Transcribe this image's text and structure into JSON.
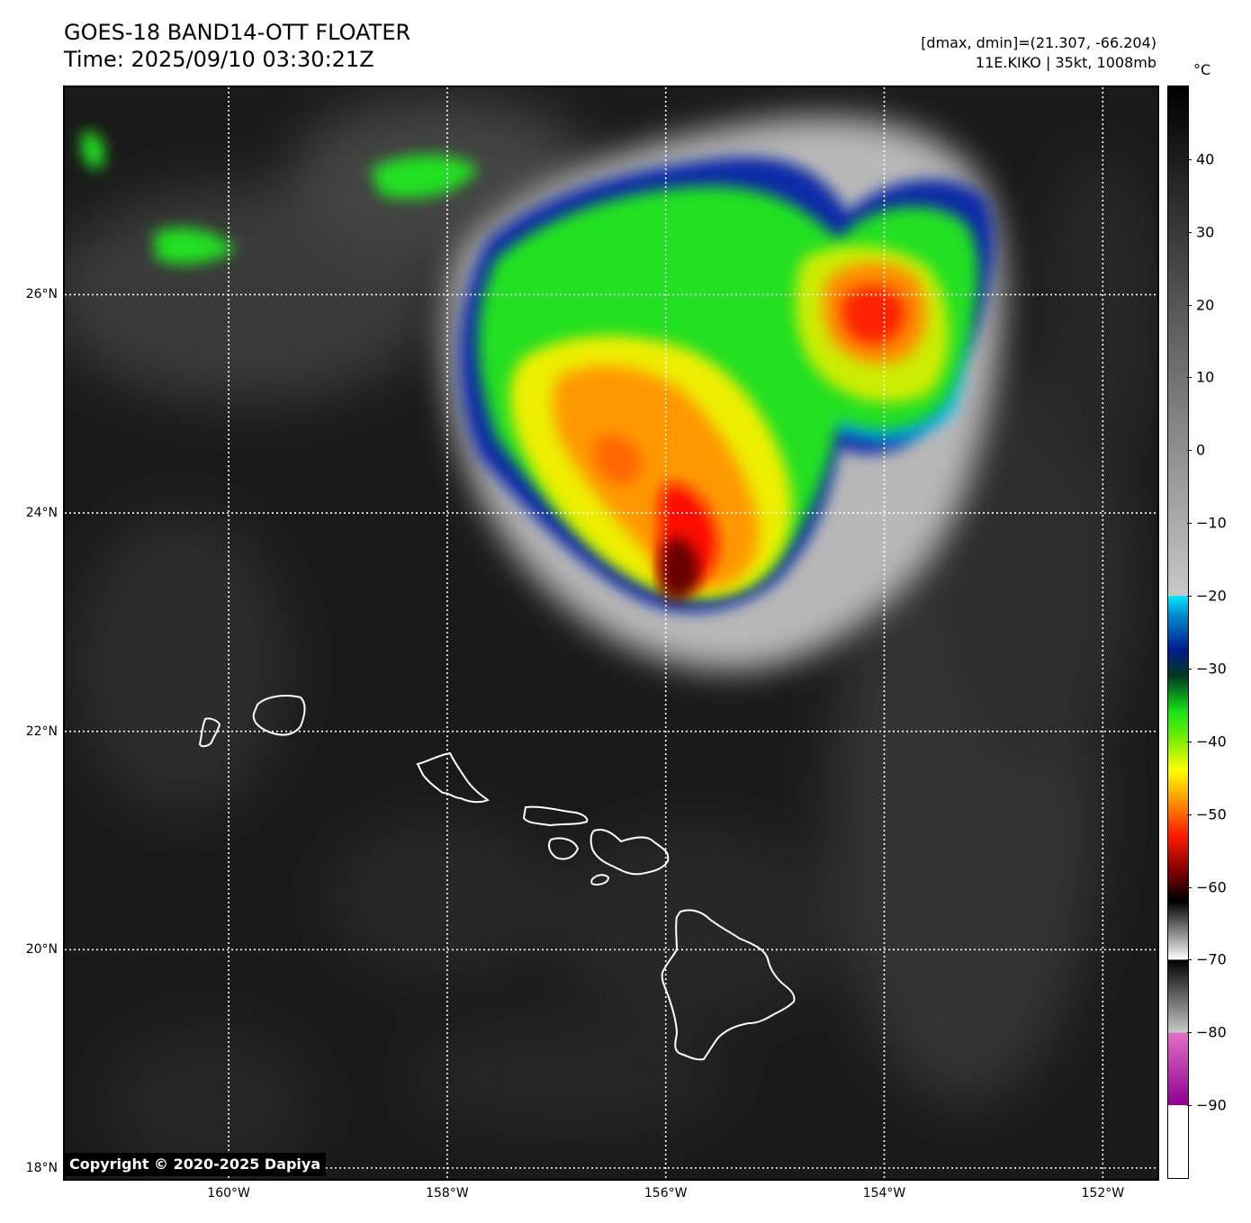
{
  "header": {
    "title_line1": "GOES-18 BAND14-OTT FLOATER",
    "title_line2": "Time: 2025/09/10 03:30:21Z",
    "dmax_dmin": "[dmax, dmin]=(21.307, -66.204)",
    "storm_info": "11E.KIKO | 35kt, 1008mb"
  },
  "map": {
    "lon_range": [
      -161.5,
      -151.5
    ],
    "lat_range": [
      17.9,
      27.9
    ],
    "lat_labels": [
      {
        "lat": 26,
        "text": "26°N"
      },
      {
        "lat": 24,
        "text": "24°N"
      },
      {
        "lat": 22,
        "text": "22°N"
      },
      {
        "lat": 20,
        "text": "20°N"
      },
      {
        "lat": 18,
        "text": "18°N"
      }
    ],
    "lon_labels": [
      {
        "lon": -160,
        "text": "160°W"
      },
      {
        "lon": -158,
        "text": "158°W"
      },
      {
        "lon": -156,
        "text": "156°W"
      },
      {
        "lon": -154,
        "text": "154°W"
      },
      {
        "lon": -152,
        "text": "152°W"
      }
    ],
    "copyright": "Copyright © 2020-2025 Dapiya"
  },
  "colorbar": {
    "unit": "°C",
    "range": [
      -100,
      50
    ],
    "ticks": [
      {
        "value": 40,
        "text": "40"
      },
      {
        "value": 30,
        "text": "30"
      },
      {
        "value": 20,
        "text": "20"
      },
      {
        "value": 10,
        "text": "10"
      },
      {
        "value": 0,
        "text": "0"
      },
      {
        "value": -10,
        "text": "−10"
      },
      {
        "value": -20,
        "text": "−20"
      },
      {
        "value": -30,
        "text": "−30"
      },
      {
        "value": -40,
        "text": "−40"
      },
      {
        "value": -50,
        "text": "−50"
      },
      {
        "value": -60,
        "text": "−60"
      },
      {
        "value": -70,
        "text": "−70"
      },
      {
        "value": -80,
        "text": "−80"
      },
      {
        "value": -90,
        "text": "−90"
      }
    ]
  },
  "colors": {
    "background": "#1a1a1a",
    "cloud_cold": "#c8c8c8",
    "cyan": "#00e5ff",
    "blue": "#001a9e",
    "green": "#18e418",
    "yellow": "#f2f200",
    "orange": "#ff9a00",
    "red": "#ff1a00",
    "darkred": "#4a0000",
    "coast": "#ffffff"
  }
}
